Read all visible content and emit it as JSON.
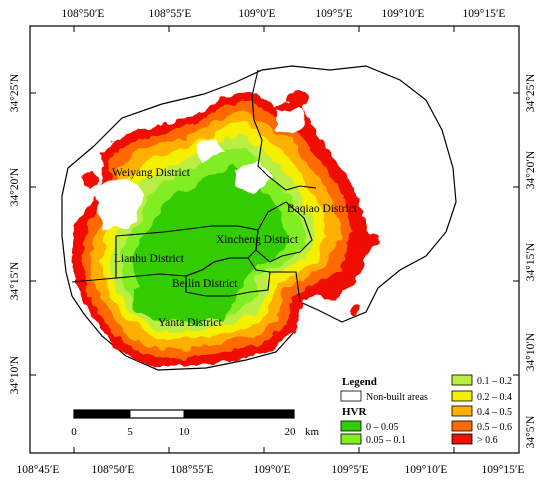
{
  "map": {
    "graticule": {
      "top_ticks": [
        "108°50′E",
        "108°55′E",
        "109°0′E",
        "109°5′E",
        "109°10′E",
        "109°15′E"
      ],
      "bottom_ticks": [
        "108°45′E",
        "108°50′E",
        "108°55′E",
        "109°0′E",
        "109°5′E",
        "109°10′E",
        "109°15′E"
      ],
      "left_ticks": [
        "34°25′N",
        "34°20′N",
        "34°15′N",
        "34°10′N"
      ],
      "right_ticks": [
        "34°25′N",
        "34°20′N",
        "34°15′N",
        "34°10′N",
        "34°5′N"
      ]
    },
    "districts": [
      "Weiyang District",
      "Baqiao District",
      "Xincheng District",
      "Lianhu District",
      "Beilin District",
      "Yanta District"
    ],
    "colors": {
      "hvr_0_005": "#33cc00",
      "hvr_005_01": "#80ee20",
      "hvr_01_02": "#bbee44",
      "hvr_02_04": "#f5f000",
      "hvr_04_05": "#ffb000",
      "hvr_05_06": "#ff6a00",
      "hvr_gt_06": "#ee1100",
      "non_built": "#ffffff",
      "boundary": "#000000"
    }
  },
  "legend": {
    "title": "Legend",
    "non_built_label": "Non-built areas",
    "hvr_title": "HVR",
    "left_items": [
      "0 – 0.05",
      "0.05 – 0.1"
    ],
    "right_items": [
      "0.1 – 0.2",
      "0.2 – 0.4",
      "0.4 – 0.5",
      "0.5 – 0.6",
      "> 0.6"
    ]
  },
  "scale_bar": {
    "labels": [
      "0",
      "5",
      "10",
      "20"
    ],
    "unit": "km"
  }
}
